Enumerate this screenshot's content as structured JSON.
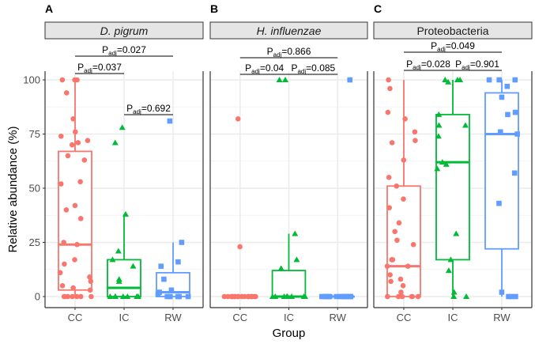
{
  "chart_data": [
    {
      "panel_label": "A",
      "title": "D. pigrum",
      "title_italic": true,
      "type": "box",
      "categories": [
        "CC",
        "IC",
        "RW"
      ],
      "ylabel": "Relative abundance (%)",
      "xlabel": "",
      "ylim": [
        0,
        100
      ],
      "yticks": [
        "0",
        "25",
        "50",
        "75",
        "100"
      ],
      "grid": true,
      "boxes": [
        {
          "group": "CC",
          "min": 0,
          "q1": 3,
          "median": 24,
          "q3": 67,
          "max": 100
        },
        {
          "group": "IC",
          "min": 0,
          "q1": 0,
          "median": 4,
          "q3": 17,
          "max": 38
        },
        {
          "group": "RW",
          "min": 0,
          "q1": 0,
          "median": 2,
          "q3": 11,
          "max": 25
        }
      ],
      "points": {
        "CC": [
          100,
          100,
          100,
          94,
          82,
          76,
          74,
          72,
          71,
          70,
          65,
          63,
          53,
          52,
          42,
          40,
          36,
          25,
          24,
          17,
          15,
          11,
          9,
          7,
          5,
          4,
          3,
          0,
          0,
          0,
          0,
          0,
          0,
          0
        ],
        "IC": [
          78,
          71,
          38,
          21,
          17,
          14,
          8,
          7,
          0,
          0,
          0,
          0,
          0,
          0,
          0
        ],
        "RW": [
          81,
          25,
          16,
          14,
          8,
          3,
          2,
          1,
          0,
          0,
          0,
          0,
          0
        ]
      },
      "comparisons": [
        {
          "from": "CC",
          "to": "RW",
          "label_prefix": "P",
          "label_sub": "adj",
          "value": "=0.027"
        },
        {
          "from": "CC",
          "to": "IC",
          "label_prefix": "P",
          "label_sub": "adj",
          "value": "=0.037"
        },
        {
          "from": "IC",
          "to": "RW",
          "label_prefix": "P",
          "label_sub": "adj",
          "value": "=0.692"
        }
      ]
    },
    {
      "panel_label": "B",
      "title": "H. influenzae",
      "title_italic": true,
      "type": "box",
      "categories": [
        "CC",
        "IC",
        "RW"
      ],
      "xlabel": "Group",
      "ylim": [
        0,
        100
      ],
      "grid": true,
      "boxes": [
        {
          "group": "CC",
          "min": 0,
          "q1": 0,
          "median": 0,
          "q3": 0,
          "max": 0
        },
        {
          "group": "IC",
          "min": 0,
          "q1": 0,
          "median": 0,
          "q3": 12,
          "max": 29
        },
        {
          "group": "RW",
          "min": 0,
          "q1": 0,
          "median": 0,
          "q3": 0,
          "max": 0
        }
      ],
      "points": {
        "CC": [
          82,
          23,
          0,
          0,
          0,
          0,
          0,
          0,
          0,
          0,
          0,
          0,
          0,
          0,
          0,
          0,
          0,
          0,
          0,
          0,
          0,
          0
        ],
        "IC": [
          100,
          100,
          29,
          17,
          13,
          0,
          0,
          0,
          0,
          0,
          0,
          0,
          0
        ],
        "RW": [
          100,
          0,
          0,
          0,
          0,
          0,
          0,
          0,
          0,
          0,
          0,
          0,
          0,
          0,
          0,
          0
        ]
      },
      "comparisons": [
        {
          "from": "CC",
          "to": "RW",
          "label_prefix": "P",
          "label_sub": "adj",
          "value": "=0.866"
        },
        {
          "from": "CC",
          "to": "IC",
          "label_prefix": "P",
          "label_sub": "adj",
          "value": "=0.04"
        },
        {
          "from": "IC",
          "to": "RW",
          "label_prefix": "P",
          "label_sub": "adj",
          "value": "=0.085"
        }
      ]
    },
    {
      "panel_label": "C",
      "title": "Proteobacteria",
      "title_italic": false,
      "type": "box",
      "categories": [
        "CC",
        "IC",
        "RW"
      ],
      "xlabel": "",
      "ylim": [
        0,
        100
      ],
      "grid": true,
      "boxes": [
        {
          "group": "CC",
          "min": 0,
          "q1": 0,
          "median": 14,
          "q3": 51,
          "max": 100
        },
        {
          "group": "IC",
          "min": 0,
          "q1": 17,
          "median": 62,
          "q3": 84,
          "max": 100
        },
        {
          "group": "RW",
          "min": 0,
          "q1": 22,
          "median": 75,
          "q3": 94,
          "max": 100
        }
      ],
      "points": {
        "CC": [
          100,
          96,
          85,
          82,
          76,
          72,
          71,
          63,
          55,
          51,
          45,
          41,
          34,
          30,
          26,
          24,
          17,
          17,
          14,
          14,
          10,
          8,
          7,
          5,
          2,
          0,
          0,
          0,
          0,
          0,
          0
        ],
        "IC": [
          100,
          100,
          100,
          99,
          84,
          79,
          79,
          74,
          62,
          61,
          59,
          29,
          17,
          12,
          2,
          0,
          0
        ],
        "RW": [
          100,
          100,
          100,
          97,
          92,
          85,
          84,
          76,
          75,
          57,
          43,
          2,
          0,
          0,
          0
        ]
      },
      "comparisons": [
        {
          "from": "CC",
          "to": "RW",
          "label_prefix": "P",
          "label_sub": "adj",
          "value": "=0.049"
        },
        {
          "from": "CC",
          "to": "IC",
          "label_prefix": "P",
          "label_sub": "adj",
          "value": "=0.028"
        },
        {
          "from": "IC",
          "to": "RW",
          "label_prefix": "P",
          "label_sub": "adj",
          "value": "=0.901"
        }
      ]
    }
  ],
  "colors": {
    "CC": "#F8766D",
    "IC": "#00BA38",
    "RW": "#619CFF"
  },
  "shapes": {
    "CC": "circle",
    "IC": "triangle",
    "RW": "square"
  }
}
